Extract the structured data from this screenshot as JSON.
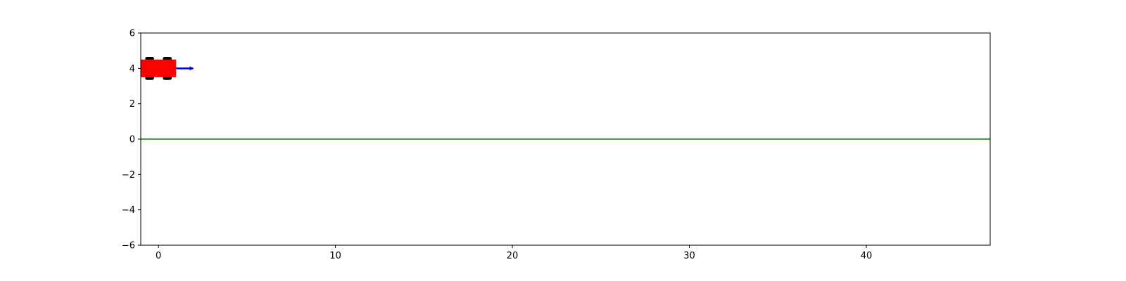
{
  "chart_data": {
    "type": "scatter",
    "title": "",
    "xlabel": "",
    "ylabel": "",
    "xlim": [
      -1,
      47
    ],
    "ylim": [
      -6,
      6
    ],
    "grid": false,
    "x_ticks": [
      0,
      10,
      20,
      30,
      40
    ],
    "y_ticks": [
      -6,
      -4,
      -2,
      0,
      2,
      4,
      6
    ],
    "x_tick_labels": [
      "0",
      "10",
      "20",
      "30",
      "40"
    ],
    "y_tick_labels": [
      "−6",
      "−4",
      "−2",
      "0",
      "2",
      "4",
      "6"
    ],
    "reference_line": {
      "y": 0,
      "color": "#008000"
    },
    "vehicle": {
      "x_center": 0,
      "y_center": 4,
      "length": 2,
      "width": 1,
      "heading_deg": 0,
      "body_color": "#ff0000",
      "wheel_color": "#000000",
      "wheels": [
        {
          "x": -0.5,
          "y": 4.55
        },
        {
          "x": 0.5,
          "y": 4.55
        },
        {
          "x": -0.5,
          "y": 3.45
        },
        {
          "x": 0.5,
          "y": 3.45
        }
      ],
      "wheel_length": 0.5,
      "wheel_width": 0.2,
      "velocity_arrow": {
        "x_start": 1,
        "y": 4,
        "x_end": 2,
        "color": "#0000cc"
      }
    }
  }
}
